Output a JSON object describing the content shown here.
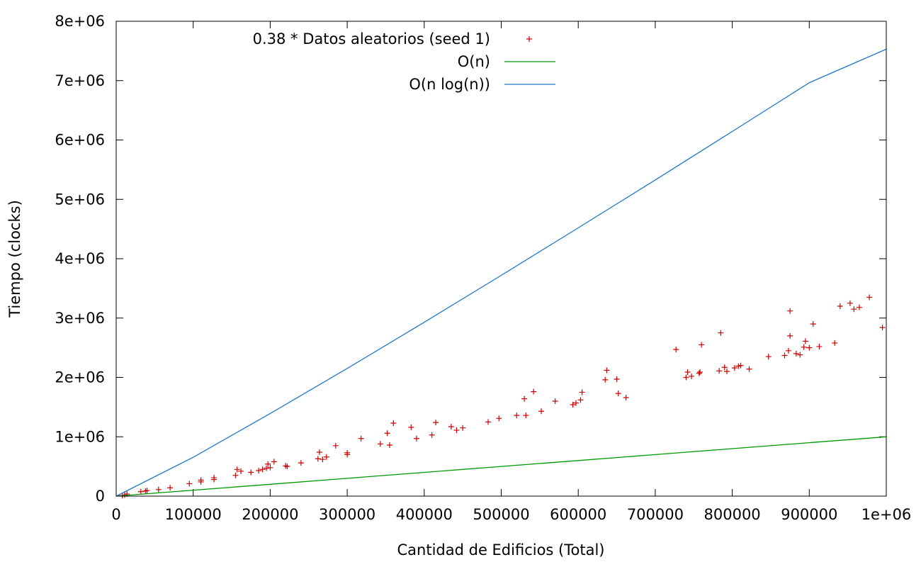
{
  "chart_data": {
    "type": "scatter",
    "xlabel": "Cantidad de Edificios (Total)",
    "ylabel": "Tiempo (clocks)",
    "xlim": [
      0,
      1000000
    ],
    "ylim": [
      0,
      8000000
    ],
    "x_ticks": [
      "0",
      "100000",
      "200000",
      "300000",
      "400000",
      "500000",
      "600000",
      "700000",
      "800000",
      "900000",
      "1e+06"
    ],
    "y_ticks": [
      "0",
      "1e+06",
      "2e+06",
      "3e+06",
      "4e+06",
      "5e+06",
      "6e+06",
      "7e+06",
      "8e+06"
    ],
    "legend_position": "top-center",
    "series": [
      {
        "name": "0.38 * Datos aleatorios (seed 1)",
        "style": "points",
        "color": "#cc0000",
        "points": [
          [
            8000,
            10000
          ],
          [
            11000,
            20000
          ],
          [
            14000,
            35000
          ],
          [
            32000,
            75000
          ],
          [
            38000,
            85000
          ],
          [
            40000,
            95000
          ],
          [
            55000,
            110000
          ],
          [
            70000,
            140000
          ],
          [
            95000,
            210000
          ],
          [
            110000,
            240000
          ],
          [
            110000,
            270000
          ],
          [
            127000,
            280000
          ],
          [
            127000,
            310000
          ],
          [
            155000,
            350000
          ],
          [
            157000,
            450000
          ],
          [
            162000,
            420000
          ],
          [
            175000,
            400000
          ],
          [
            185000,
            430000
          ],
          [
            190000,
            450000
          ],
          [
            195000,
            470000
          ],
          [
            197000,
            540000
          ],
          [
            200000,
            480000
          ],
          [
            205000,
            580000
          ],
          [
            220000,
            510000
          ],
          [
            222000,
            500000
          ],
          [
            240000,
            560000
          ],
          [
            262000,
            630000
          ],
          [
            264000,
            740000
          ],
          [
            268000,
            620000
          ],
          [
            273000,
            660000
          ],
          [
            285000,
            850000
          ],
          [
            300000,
            700000
          ],
          [
            300000,
            730000
          ],
          [
            318000,
            970000
          ],
          [
            343000,
            880000
          ],
          [
            352000,
            1060000
          ],
          [
            355000,
            860000
          ],
          [
            360000,
            1230000
          ],
          [
            383000,
            1160000
          ],
          [
            390000,
            970000
          ],
          [
            410000,
            1030000
          ],
          [
            415000,
            1240000
          ],
          [
            435000,
            1170000
          ],
          [
            442000,
            1110000
          ],
          [
            450000,
            1150000
          ],
          [
            483000,
            1250000
          ],
          [
            497000,
            1310000
          ],
          [
            520000,
            1360000
          ],
          [
            530000,
            1640000
          ],
          [
            532000,
            1360000
          ],
          [
            542000,
            1760000
          ],
          [
            552000,
            1430000
          ],
          [
            570000,
            1600000
          ],
          [
            593000,
            1540000
          ],
          [
            597000,
            1570000
          ],
          [
            603000,
            1620000
          ],
          [
            605000,
            1750000
          ],
          [
            635000,
            1960000
          ],
          [
            637000,
            2120000
          ],
          [
            650000,
            1970000
          ],
          [
            652000,
            1730000
          ],
          [
            662000,
            1660000
          ],
          [
            727000,
            2470000
          ],
          [
            740000,
            2000000
          ],
          [
            742000,
            2090000
          ],
          [
            747000,
            2020000
          ],
          [
            757000,
            2070000
          ],
          [
            758000,
            2090000
          ],
          [
            760000,
            2550000
          ],
          [
            783000,
            2110000
          ],
          [
            785000,
            2750000
          ],
          [
            790000,
            2170000
          ],
          [
            793000,
            2100000
          ],
          [
            803000,
            2160000
          ],
          [
            808000,
            2190000
          ],
          [
            811000,
            2200000
          ],
          [
            822000,
            2140000
          ],
          [
            847000,
            2350000
          ],
          [
            868000,
            2370000
          ],
          [
            873000,
            2450000
          ],
          [
            875000,
            2700000
          ],
          [
            875000,
            3120000
          ],
          [
            883000,
            2400000
          ],
          [
            888000,
            2380000
          ],
          [
            893000,
            2510000
          ],
          [
            895000,
            2610000
          ],
          [
            900000,
            2500000
          ],
          [
            905000,
            2900000
          ],
          [
            913000,
            2520000
          ],
          [
            933000,
            2580000
          ],
          [
            940000,
            3200000
          ],
          [
            953000,
            3250000
          ],
          [
            958000,
            3150000
          ],
          [
            965000,
            3180000
          ],
          [
            978000,
            3350000
          ],
          [
            995000,
            2840000
          ]
        ]
      },
      {
        "name": "O(n)",
        "style": "line",
        "color": "#009900",
        "points": [
          [
            0,
            0
          ],
          [
            100000,
            100000
          ],
          [
            200000,
            200000
          ],
          [
            300000,
            300000
          ],
          [
            400000,
            400000
          ],
          [
            500000,
            500000
          ],
          [
            600000,
            600000
          ],
          [
            700000,
            700000
          ],
          [
            800000,
            800000
          ],
          [
            900000,
            900000
          ],
          [
            1000000,
            1000000
          ]
        ]
      },
      {
        "name": "O(n log(n))",
        "style": "line",
        "color": "#1f78c8",
        "points": [
          [
            1000,
            5500
          ],
          [
            100000,
            654000
          ],
          [
            200000,
            1392000
          ],
          [
            300000,
            2152000
          ],
          [
            400000,
            2929000
          ],
          [
            500000,
            3719000
          ],
          [
            600000,
            4519000
          ],
          [
            700000,
            5327000
          ],
          [
            800000,
            6143000
          ],
          [
            900000,
            6965000
          ],
          [
            1000000,
            7530000
          ]
        ]
      }
    ]
  }
}
